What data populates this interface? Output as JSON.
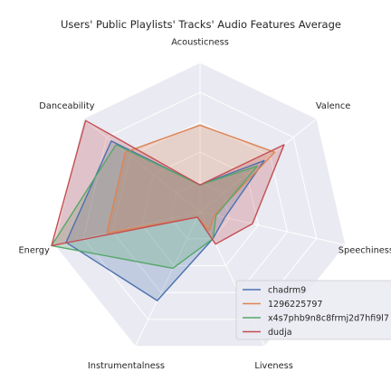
{
  "chart_data": {
    "type": "radar",
    "title": "Users' Public Playlists' Tracks' Audio Features Average",
    "axes": [
      "Acousticness",
      "Valence",
      "Speechiness",
      "Liveness",
      "Instrumentalness",
      "Energy",
      "Danceability"
    ],
    "rlim": [
      0,
      1
    ],
    "grid": true,
    "legend_position": "lower-right",
    "series": [
      {
        "name": "chadrm9",
        "color": "#4c72b0",
        "values": [
          0.18,
          0.55,
          0.17,
          0.2,
          0.66,
          0.92,
          0.76
        ]
      },
      {
        "name": "1296225797",
        "color": "#dd8452",
        "values": [
          0.58,
          0.64,
          0.1,
          0.14,
          0.04,
          0.64,
          0.64
        ]
      },
      {
        "name": "x4s7phb9n8c8frmj2d7hfi9l7",
        "color": "#55a868",
        "values": [
          0.18,
          0.49,
          0.11,
          0.2,
          0.42,
          1.02,
          0.72
        ]
      },
      {
        "name": "dudja",
        "color": "#c44e52",
        "values": [
          0.18,
          0.72,
          0.36,
          0.24,
          0.04,
          1.02,
          0.98
        ]
      }
    ]
  }
}
